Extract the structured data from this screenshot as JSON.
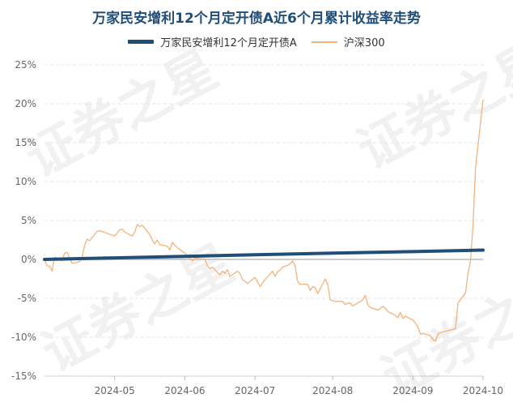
{
  "chart_data": {
    "type": "line",
    "title": "万家民安增利12个月定开债A近6个月累计收益率走势",
    "x_tick_labels": [
      "2024-05",
      "2024-06",
      "2024-07",
      "2024-08",
      "2024-09",
      "2024-10"
    ],
    "y_tick_labels": [
      "25%",
      "20%",
      "15%",
      "10%",
      "5%",
      "0%",
      "-5%",
      "-10%",
      "-15%"
    ],
    "ylim": [
      -15,
      25
    ],
    "grid": true,
    "legend_position": "top-center",
    "series": [
      {
        "name": "万家民安增利12个月定开债A",
        "color": "#1f4e79",
        "x": [
          "2024-04-08",
          "2024-05-06",
          "2024-06-03",
          "2024-07-01",
          "2024-08-01",
          "2024-09-02",
          "2024-09-30"
        ],
        "y": [
          0.0,
          0.2,
          0.4,
          0.6,
          0.8,
          1.0,
          1.2
        ]
      },
      {
        "name": "沪深300",
        "color": "#f5b27a",
        "x": [
          "2024-04-08",
          "2024-04-09",
          "2024-04-10",
          "2024-04-11",
          "2024-04-12",
          "2024-04-15",
          "2024-04-16",
          "2024-04-17",
          "2024-04-18",
          "2024-04-19",
          "2024-04-22",
          "2024-04-23",
          "2024-04-24",
          "2024-04-25",
          "2024-04-26",
          "2024-04-29",
          "2024-04-30",
          "2024-05-06",
          "2024-05-07",
          "2024-05-08",
          "2024-05-09",
          "2024-05-10",
          "2024-05-13",
          "2024-05-14",
          "2024-05-15",
          "2024-05-16",
          "2024-05-17",
          "2024-05-20",
          "2024-05-21",
          "2024-05-22",
          "2024-05-23",
          "2024-05-24",
          "2024-05-27",
          "2024-05-28",
          "2024-05-29",
          "2024-05-30",
          "2024-05-31",
          "2024-06-03",
          "2024-06-04",
          "2024-06-05",
          "2024-06-06",
          "2024-06-07",
          "2024-06-11",
          "2024-06-12",
          "2024-06-13",
          "2024-06-14",
          "2024-06-17",
          "2024-06-18",
          "2024-06-19",
          "2024-06-20",
          "2024-06-21",
          "2024-06-24",
          "2024-06-25",
          "2024-06-26",
          "2024-06-27",
          "2024-06-28",
          "2024-07-01",
          "2024-07-02",
          "2024-07-03",
          "2024-07-04",
          "2024-07-05",
          "2024-07-08",
          "2024-07-09",
          "2024-07-10",
          "2024-07-11",
          "2024-07-12",
          "2024-07-15",
          "2024-07-16",
          "2024-07-17",
          "2024-07-18",
          "2024-07-19",
          "2024-07-22",
          "2024-07-23",
          "2024-07-24",
          "2024-07-25",
          "2024-07-26",
          "2024-07-29",
          "2024-07-30",
          "2024-07-31",
          "2024-08-01",
          "2024-08-02",
          "2024-08-05",
          "2024-08-06",
          "2024-08-07",
          "2024-08-08",
          "2024-08-09",
          "2024-08-12",
          "2024-08-13",
          "2024-08-14",
          "2024-08-15",
          "2024-08-16",
          "2024-08-19",
          "2024-08-20",
          "2024-08-21",
          "2024-08-22",
          "2024-08-23",
          "2024-08-26",
          "2024-08-27",
          "2024-08-28",
          "2024-08-29",
          "2024-08-30",
          "2024-09-02",
          "2024-09-03",
          "2024-09-04",
          "2024-09-05",
          "2024-09-06",
          "2024-09-09",
          "2024-09-10",
          "2024-09-11",
          "2024-09-12",
          "2024-09-13",
          "2024-09-18",
          "2024-09-19",
          "2024-09-20",
          "2024-09-23",
          "2024-09-24",
          "2024-09-25",
          "2024-09-26",
          "2024-09-27",
          "2024-09-30"
        ],
        "y": [
          0.0,
          -0.8,
          -0.9,
          -1.5,
          0.3,
          -0.2,
          0.8,
          0.9,
          0.2,
          -0.5,
          -0.3,
          0.3,
          1.8,
          2.6,
          2.4,
          3.6,
          3.7,
          3.0,
          3.4,
          3.8,
          3.9,
          3.5,
          3.0,
          3.5,
          4.5,
          4.2,
          4.4,
          3.2,
          2.5,
          2.0,
          2.5,
          1.9,
          1.7,
          1.2,
          2.2,
          1.8,
          1.5,
          0.8,
          0.5,
          0.2,
          -0.2,
          0.2,
          0.0,
          -0.8,
          -1.2,
          -1.0,
          -2.0,
          -1.5,
          -1.8,
          -1.3,
          -2.2,
          -1.5,
          -1.8,
          -2.6,
          -2.8,
          -3.1,
          -2.3,
          -2.9,
          -3.5,
          -3.0,
          -2.6,
          -1.5,
          -2.2,
          -1.6,
          -1.4,
          -1.0,
          -0.6,
          -0.2,
          -0.8,
          -2.8,
          -3.2,
          -3.2,
          -4.0,
          -3.5,
          -3.6,
          -4.4,
          -2.5,
          -3.2,
          -5.2,
          -5.3,
          -5.4,
          -5.4,
          -5.8,
          -5.6,
          -5.6,
          -6.0,
          -5.4,
          -5.2,
          -4.6,
          -5.8,
          -6.2,
          -6.5,
          -6.3,
          -6.0,
          -6.3,
          -6.7,
          -7.2,
          -7.5,
          -6.8,
          -7.6,
          -7.3,
          -7.8,
          -8.2,
          -8.7,
          -9.6,
          -9.5,
          -9.8,
          -10.3,
          -10.5,
          -9.6,
          -9.4,
          -9.0,
          -8.9,
          -5.6,
          -4.3,
          -1.8,
          -0.2,
          4.5,
          11.8,
          20.5
        ]
      }
    ]
  },
  "watermark": "证券之星"
}
